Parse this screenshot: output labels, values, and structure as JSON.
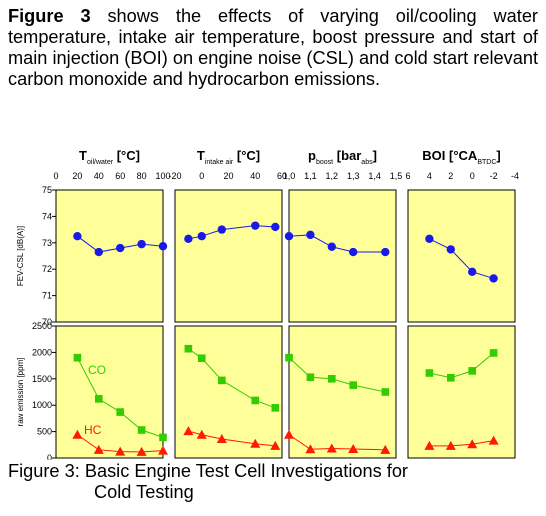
{
  "intro": {
    "lead": "Figure 3",
    "text": " shows the effects of varying oil/cooling water temperature, intake air temperature, boost pressure and start of main injection (BOI) on engine noise (CSL) and cold start relevant carbon monoxide and hydrocarbon emissions."
  },
  "caption": {
    "line1": "Figure 3: Basic Engine Test Cell Investigations for",
    "line2": "Cold Testing"
  },
  "colors": {
    "panel_fill": "#ffff99",
    "csl": "#1a1ae6",
    "co": "#33cc00",
    "hc": "#ff1a00"
  },
  "chart_data": {
    "type": "line",
    "rows": [
      {
        "ylabel": "FEV-CSL [dB(A)]",
        "ylim": [
          70,
          75
        ],
        "ticks": [
          "70",
          "71",
          "72",
          "73",
          "74",
          "75"
        ]
      },
      {
        "ylabel": "raw emission [ppm]",
        "ylim": [
          0,
          2500
        ],
        "ticks": [
          "0",
          "500",
          "1000",
          "1500",
          "2000",
          "2500"
        ]
      }
    ],
    "series_labels": {
      "co": "CO",
      "hc": "HC"
    },
    "columns": [
      {
        "title_main": "T",
        "title_sub": "oil/water",
        "title_unit": " [°C]",
        "xlim": [
          0,
          100
        ],
        "ticks": [
          "0",
          "20",
          "40",
          "60",
          "80",
          "100"
        ],
        "tick_values": [
          0,
          20,
          40,
          60,
          80,
          100
        ],
        "x": [
          20,
          40,
          60,
          80,
          100
        ],
        "csl": [
          73.25,
          72.65,
          72.8,
          72.95,
          72.87
        ],
        "co": [
          1900,
          1120,
          870,
          530,
          390
        ],
        "hc": [
          440,
          155,
          120,
          115,
          140
        ]
      },
      {
        "title_main": "T",
        "title_sub": "intake air",
        "title_unit": " [°C]",
        "xlim": [
          -20,
          60
        ],
        "ticks": [
          "-20",
          "0",
          "20",
          "40",
          "60"
        ],
        "tick_values": [
          -20,
          0,
          20,
          40,
          60
        ],
        "x": [
          -10,
          0,
          15,
          40,
          55
        ],
        "csl": [
          73.15,
          73.25,
          73.5,
          73.65,
          73.6
        ],
        "co": [
          2070,
          1890,
          1470,
          1090,
          950
        ],
        "hc": [
          510,
          440,
          360,
          270,
          230
        ]
      },
      {
        "title_main": "p",
        "title_sub": "boost",
        "title_unit": " [bar",
        "title_sub2": "abs",
        "title_end": "]",
        "xlim": [
          1.0,
          1.5
        ],
        "ticks": [
          "1,0",
          "1,1",
          "1,2",
          "1,3",
          "1,4",
          "1,5"
        ],
        "tick_values": [
          1.0,
          1.1,
          1.2,
          1.3,
          1.4,
          1.5
        ],
        "x": [
          1.0,
          1.1,
          1.2,
          1.3,
          1.45
        ],
        "csl": [
          73.25,
          73.3,
          72.85,
          72.65,
          72.65
        ],
        "co": [
          1900,
          1530,
          1500,
          1380,
          1250
        ],
        "hc": [
          440,
          165,
          180,
          170,
          155
        ]
      },
      {
        "title_main": "BOI",
        "title_sub": "",
        "title_unit": " [°CA",
        "title_sub2": "BTDC",
        "title_end": "]",
        "xlim": [
          6,
          -4
        ],
        "ticks": [
          "6",
          "4",
          "2",
          "0",
          "-2",
          "-4"
        ],
        "tick_values": [
          6,
          4,
          2,
          0,
          -2,
          -4
        ],
        "x": [
          4,
          2,
          0,
          -2
        ],
        "csl": [
          73.15,
          72.75,
          71.9,
          71.65
        ],
        "co": [
          1610,
          1520,
          1650,
          1990
        ],
        "hc": [
          230,
          230,
          260,
          330
        ]
      }
    ]
  }
}
